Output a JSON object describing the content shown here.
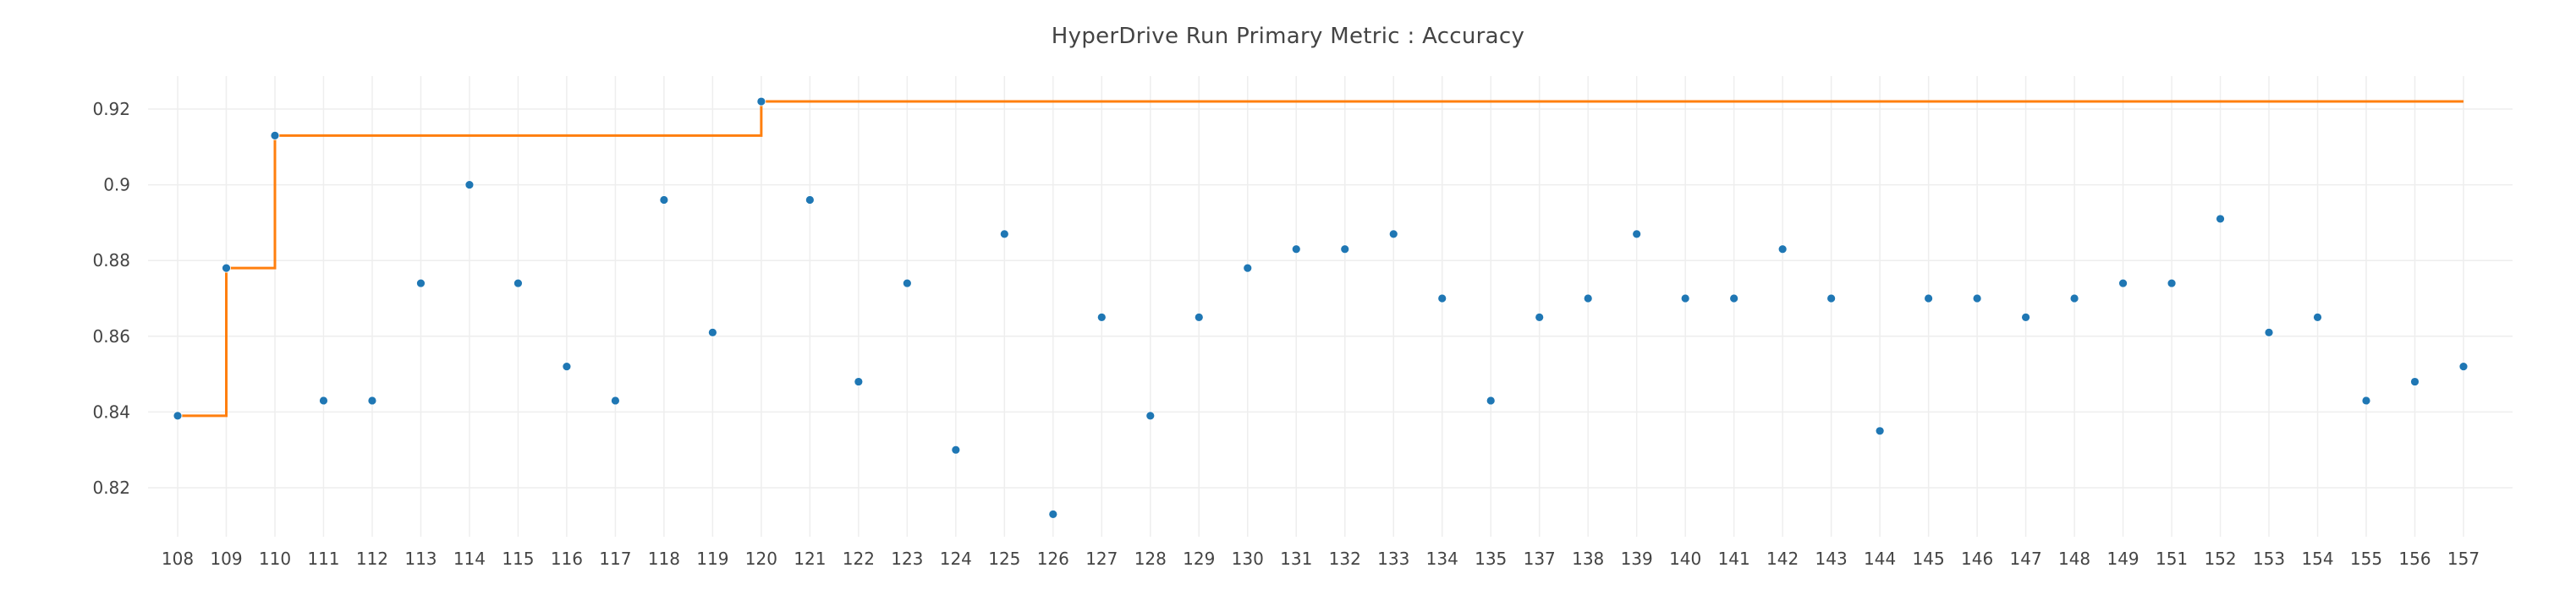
{
  "chart_data": {
    "type": "scatter",
    "title": "HyperDrive Run Primary Metric : Accuracy",
    "xlabel": "",
    "ylabel": "",
    "categories": [
      "108",
      "109",
      "110",
      "111",
      "112",
      "113",
      "114",
      "115",
      "116",
      "117",
      "118",
      "119",
      "120",
      "121",
      "122",
      "123",
      "124",
      "125",
      "126",
      "127",
      "128",
      "129",
      "130",
      "131",
      "132",
      "133",
      "134",
      "135",
      "137",
      "138",
      "139",
      "140",
      "141",
      "142",
      "143",
      "144",
      "145",
      "146",
      "147",
      "148",
      "149",
      "151",
      "152",
      "153",
      "154",
      "155",
      "156",
      "157"
    ],
    "series": [
      {
        "values": [
          0.839,
          0.878,
          0.913,
          0.843,
          0.843,
          0.874,
          0.9,
          0.874,
          0.852,
          0.843,
          0.896,
          0.861,
          0.922,
          0.896,
          0.848,
          0.874,
          0.83,
          0.887,
          0.813,
          0.865,
          0.839,
          0.865,
          0.878,
          0.883,
          0.883,
          0.887,
          0.87,
          0.843,
          0.865,
          0.87,
          0.887,
          0.87,
          0.87,
          0.883,
          0.87,
          0.835,
          0.87,
          0.87,
          0.865,
          0.87,
          0.874,
          0.874,
          0.891,
          0.861,
          0.865,
          0.843,
          0.848,
          0.852
        ],
        "color": "#1f77b4",
        "mode": "markers"
      },
      {
        "values": [
          0.839,
          0.878,
          0.913,
          0.913,
          0.913,
          0.913,
          0.913,
          0.913,
          0.913,
          0.913,
          0.913,
          0.913,
          0.922,
          0.922,
          0.922,
          0.922,
          0.922,
          0.922,
          0.922,
          0.922,
          0.922,
          0.922,
          0.922,
          0.922,
          0.922,
          0.922,
          0.922,
          0.922,
          0.922,
          0.922,
          0.922,
          0.922,
          0.922,
          0.922,
          0.922,
          0.922,
          0.922,
          0.922,
          0.922,
          0.922,
          0.922,
          0.922,
          0.922,
          0.922,
          0.922,
          0.922,
          0.922,
          0.922
        ],
        "color": "#ff7f0e",
        "mode": "step"
      }
    ],
    "yticks": [
      0.82,
      0.84,
      0.86,
      0.88,
      0.9,
      0.92
    ],
    "ytick_labels": [
      "0.82",
      "0.84",
      "0.86",
      "0.88",
      "0.9",
      "0.92"
    ],
    "ylim": [
      0.808,
      0.932
    ],
    "grid": true,
    "legend": "none"
  }
}
